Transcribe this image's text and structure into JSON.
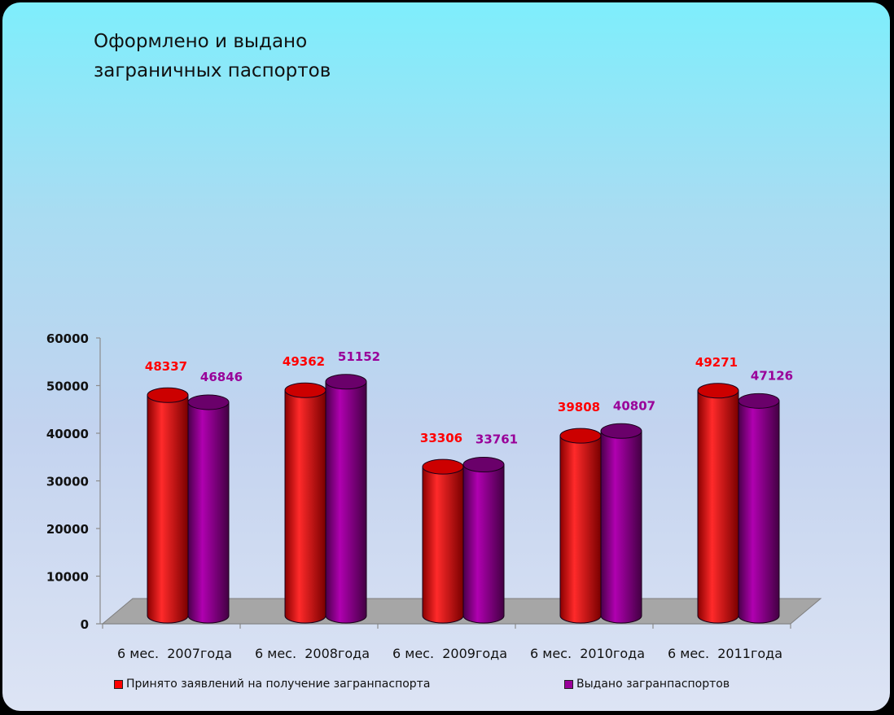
{
  "chart_data": {
    "type": "bar",
    "title": "Оформлено и выдано\nзаграничных паспортов",
    "categories": [
      "6 мес.  2007года",
      "6 мес.  2008года",
      "6 мес.  2009года",
      "6 мес.  2010года",
      "6 мес.  2011года"
    ],
    "series": [
      {
        "name": "Принято заявлений на получение загранпаспорта",
        "values": [
          48337,
          49362,
          33306,
          39808,
          49271
        ],
        "color": "#ff0000"
      },
      {
        "name": "Выдано загранпаспортов",
        "values": [
          46846,
          51152,
          33761,
          40807,
          47126
        ],
        "color": "#990099"
      }
    ],
    "yticks": [
      "0",
      "10000",
      "20000",
      "30000",
      "40000",
      "50000",
      "60000"
    ],
    "ylim": [
      0,
      60000
    ],
    "bar_shape": "cylinder",
    "style_3d": true,
    "legend_position": "bottom",
    "colors": {
      "floor": "#a6a6a6",
      "label_series_1": "#ff0000",
      "label_series_2": "#990099"
    }
  }
}
